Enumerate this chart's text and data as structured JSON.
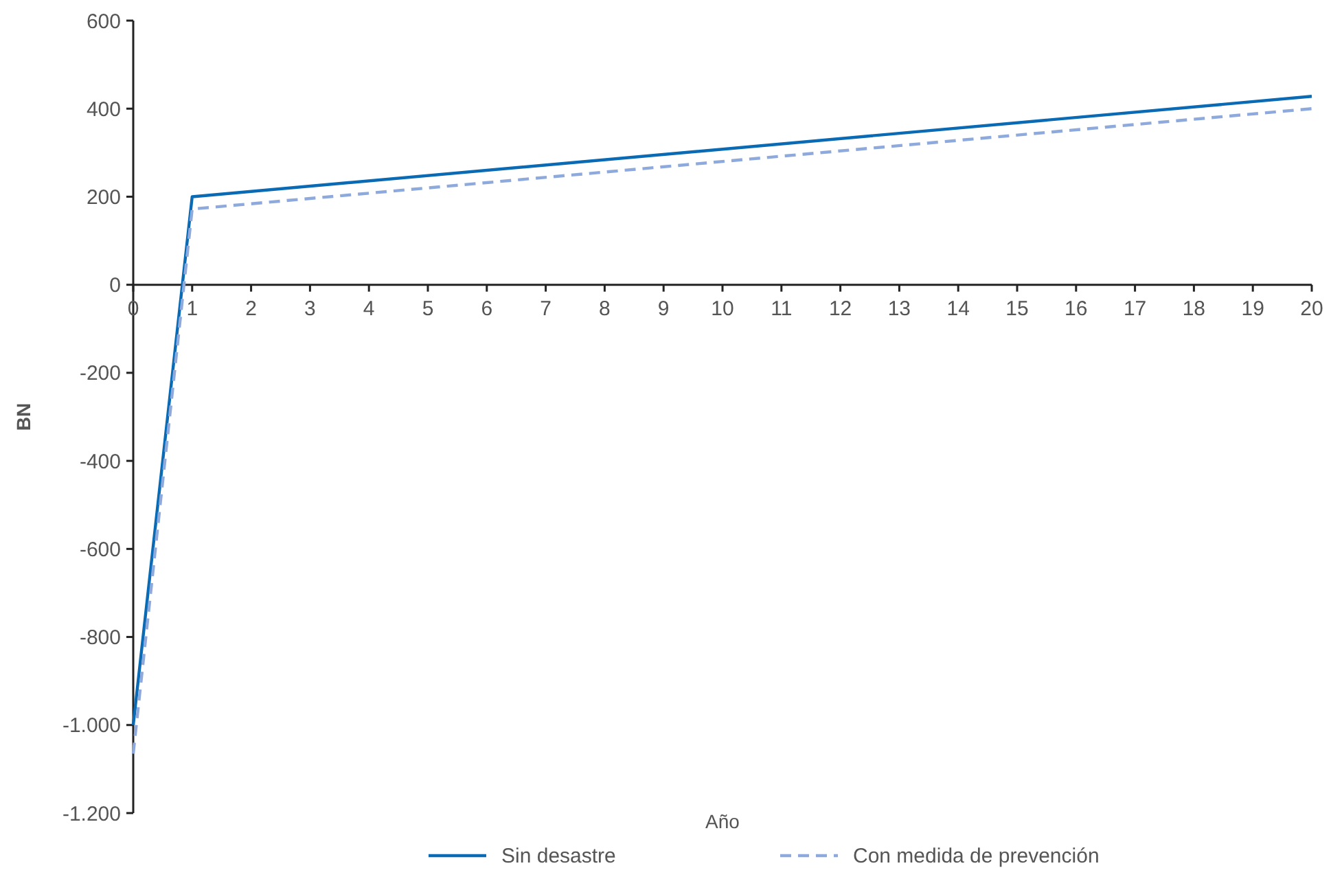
{
  "chart_data": {
    "type": "line",
    "xlabel": "Año",
    "ylabel": "BN",
    "x": [
      0,
      1,
      20
    ],
    "series": [
      {
        "name": "Sin desastre",
        "color": "#0a6ab4",
        "values": [
          -1000,
          200,
          428
        ],
        "line_style": "solid"
      },
      {
        "name": "Con medida de prevención",
        "color": "#8eaadc",
        "values": [
          -1065,
          172,
          400
        ],
        "line_style": "dashed"
      }
    ],
    "xlim": [
      0,
      20
    ],
    "xticks": [
      0,
      1,
      2,
      3,
      4,
      5,
      6,
      7,
      8,
      9,
      10,
      11,
      12,
      13,
      14,
      15,
      16,
      17,
      18,
      19,
      20
    ],
    "ylim": [
      -1200,
      600
    ],
    "yticks": [
      {
        "value": -1200,
        "label": "-1.200"
      },
      {
        "value": -1000,
        "label": "-1.000"
      },
      -800,
      -600,
      -400,
      -200,
      0,
      200,
      400,
      600
    ],
    "grid": false,
    "legend": "bottom",
    "marker": "none"
  }
}
